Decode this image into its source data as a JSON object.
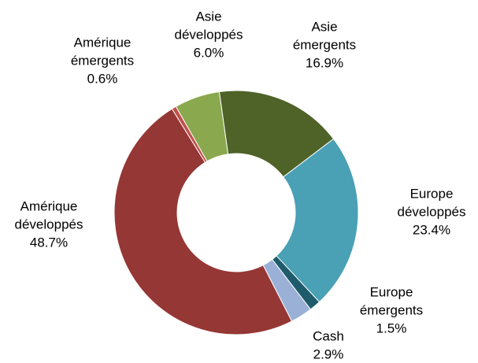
{
  "chart_data": {
    "type": "donut",
    "categories": [
      [
        "Asie",
        "émergents"
      ],
      [
        "Europe",
        "développés"
      ],
      [
        "Europe",
        "émergents"
      ],
      [
        "Cash"
      ],
      [
        "Amérique",
        "développés"
      ],
      [
        "Amérique",
        "émergents"
      ],
      [
        "Asie",
        "développés"
      ]
    ],
    "values": [
      16.9,
      23.4,
      1.5,
      2.9,
      48.7,
      0.6,
      6.0
    ],
    "value_labels": [
      "16.9%",
      "23.4%",
      "1.5%",
      "2.9%",
      "48.7%",
      "0.6%",
      "6.0%"
    ],
    "colors": [
      "#4f6228",
      "#4aa0b5",
      "#1f5c6b",
      "#9ab0d6",
      "#953735",
      "#c0504d",
      "#8aa84e"
    ]
  }
}
